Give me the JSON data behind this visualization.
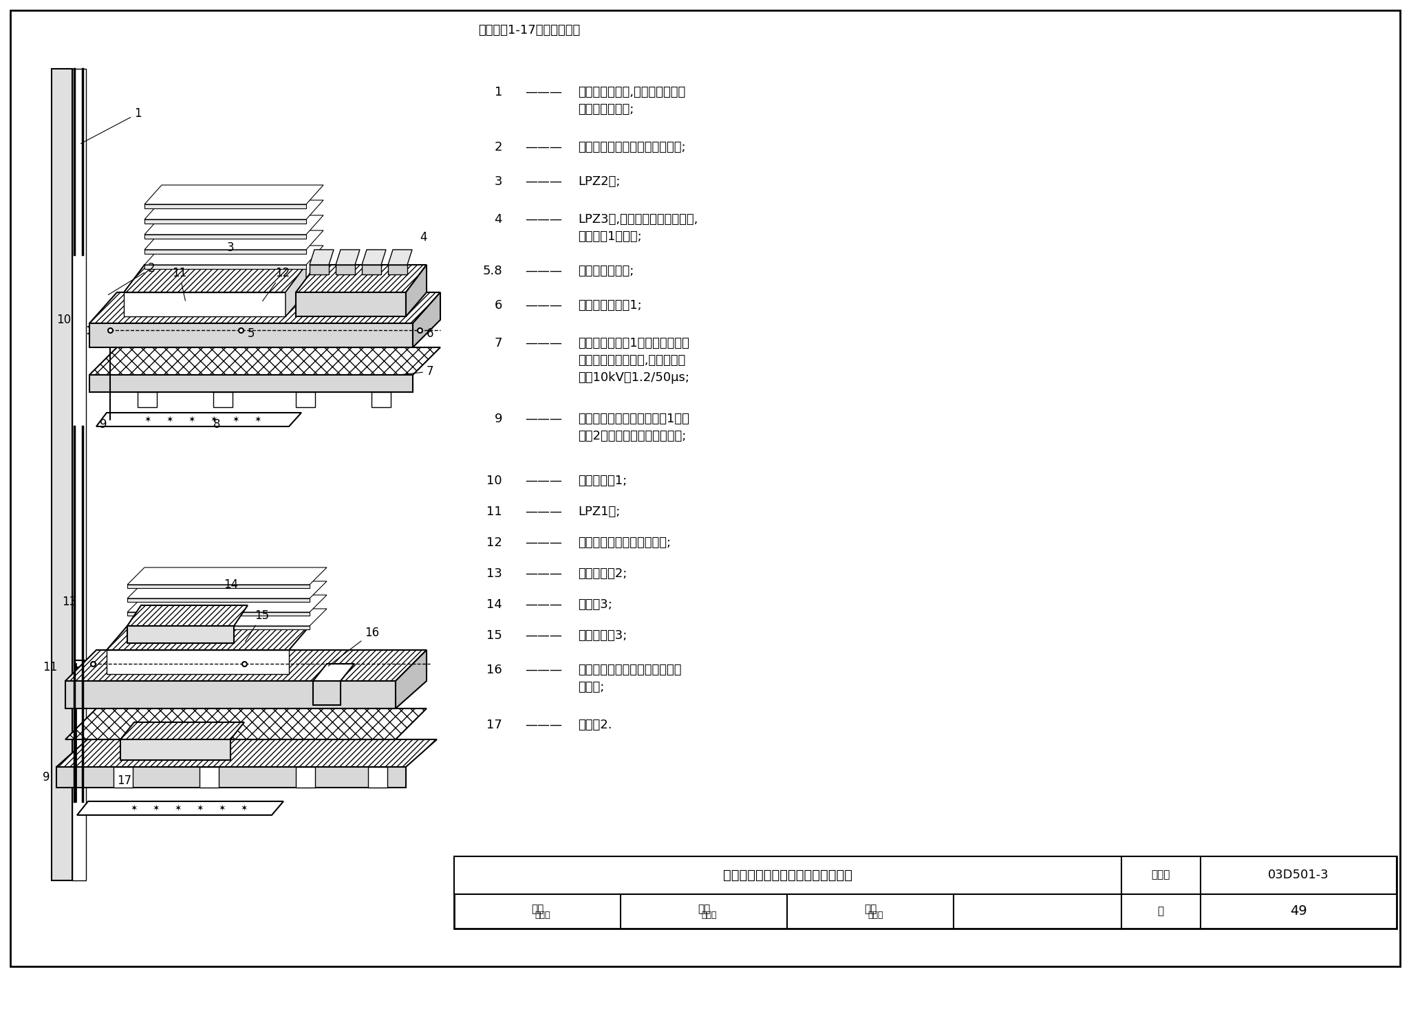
{
  "title": "建筑物内混合等电位连接的设计例子",
  "atlas_number": "03D501-3",
  "page": "49",
  "background_color": "#ffffff",
  "border_color": "#000000",
  "note_header": "注：图中1-17的标注代表：",
  "legend_items": [
    {
      "num": "1",
      "text": "低阻抗电缆管道,建筑物共用接地\n系统的一个单元;"
    },
    {
      "num": "2",
      "text": "单点连接与电缆管道之间的连接;"
    },
    {
      "num": "3",
      "text": "LPZ2区;"
    },
    {
      "num": "4",
      "text": "LPZ3区,由设备的屏蔽外壳构成,\n即系统组1的机架;"
    },
    {
      "num": "5.8",
      "text": "钢筋混凝土地面;"
    },
    {
      "num": "6",
      "text": "等电位连接网络1;"
    },
    {
      "num": "7",
      "text": "等电位连接网络1与建筑物共用接\n地系统之间的绝缘物,其绝缘强度\n大于10kV、1.2/50μs;"
    },
    {
      "num": "9",
      "text": "电缆管道、等电位连接网络1、系\n统组2与地面钢筋的等电位连接;"
    },
    {
      "num": "10",
      "text": "单点连接点1;"
    },
    {
      "num": "11",
      "text": "LPZ1区;"
    },
    {
      "num": "12",
      "text": "连到机架的电缆金属屏蔽层;"
    },
    {
      "num": "13",
      "text": "单点连接点2;"
    },
    {
      "num": "14",
      "text": "系统组3;"
    },
    {
      "num": "15",
      "text": "单点连接点3;"
    },
    {
      "num": "16",
      "text": "采用一般等电位连接的原有设备\n和装置;"
    },
    {
      "num": "17",
      "text": "系统组2."
    }
  ],
  "legend_y_positions": [
    1355,
    1275,
    1225,
    1170,
    1095,
    1045,
    990,
    880,
    790,
    745,
    700,
    655,
    610,
    565,
    515,
    435
  ],
  "table_title": "建筑物内混合等电位连接的设计例子",
  "table_atlas_label": "图集号",
  "table_atlas_value": "03D501-3",
  "table_row2_labels": [
    "审核",
    "校对",
    "设计",
    "页"
  ],
  "table_page": "49",
  "line_color": "#000000",
  "gray_light": "#d8d8d8",
  "gray_medium": "#c0c0c0"
}
